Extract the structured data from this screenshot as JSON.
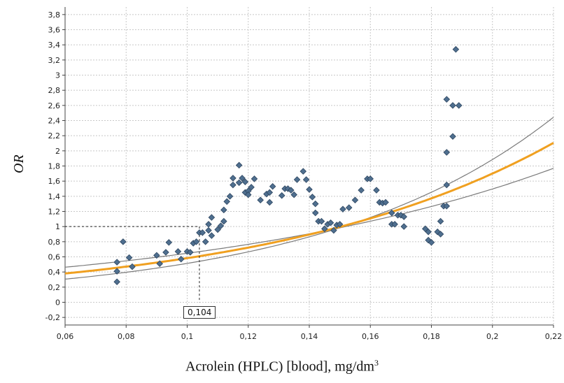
{
  "chart_data": {
    "type": "scatter",
    "xlabel": "Acrolein (HPLC) [blood], mg/dm",
    "xlabel_sup": "3",
    "ylabel": "OR",
    "xlim": [
      0.06,
      0.22
    ],
    "ylim": [
      -0.3,
      3.9
    ],
    "x_ticks": [
      "0,06",
      "0,08",
      "0,1",
      "0,12",
      "0,14",
      "0,16",
      "0,18",
      "0,2",
      "0,22"
    ],
    "y_ticks": [
      "-0,2",
      "0",
      "0,2",
      "0,4",
      "0,6",
      "0,8",
      "1",
      "1,2",
      "1,4",
      "1,6",
      "1,8",
      "2",
      "2,2",
      "2,4",
      "2,6",
      "2,8",
      "3",
      "3,2",
      "3,4",
      "3,6",
      "3,8"
    ],
    "grid": true,
    "colors": {
      "points": "#4f6f8f",
      "fit": "#f0a020",
      "ci": "#7a7a7a"
    },
    "points": [
      [
        0.077,
        0.27
      ],
      [
        0.077,
        0.41
      ],
      [
        0.077,
        0.53
      ],
      [
        0.079,
        0.8
      ],
      [
        0.081,
        0.59
      ],
      [
        0.082,
        0.47
      ],
      [
        0.09,
        0.62
      ],
      [
        0.091,
        0.51
      ],
      [
        0.093,
        0.66
      ],
      [
        0.094,
        0.79
      ],
      [
        0.097,
        0.67
      ],
      [
        0.098,
        0.57
      ],
      [
        0.1,
        0.67
      ],
      [
        0.101,
        0.66
      ],
      [
        0.102,
        0.78
      ],
      [
        0.103,
        0.8
      ],
      [
        0.104,
        0.92
      ],
      [
        0.105,
        0.92
      ],
      [
        0.106,
        0.8
      ],
      [
        0.107,
        0.95
      ],
      [
        0.107,
        1.03
      ],
      [
        0.108,
        1.12
      ],
      [
        0.108,
        0.88
      ],
      [
        0.11,
        0.96
      ],
      [
        0.111,
        1.01
      ],
      [
        0.112,
        1.07
      ],
      [
        0.112,
        1.22
      ],
      [
        0.113,
        1.33
      ],
      [
        0.114,
        1.4
      ],
      [
        0.115,
        1.55
      ],
      [
        0.115,
        1.64
      ],
      [
        0.117,
        1.81
      ],
      [
        0.117,
        1.58
      ],
      [
        0.118,
        1.64
      ],
      [
        0.119,
        1.59
      ],
      [
        0.119,
        1.45
      ],
      [
        0.12,
        1.47
      ],
      [
        0.12,
        1.42
      ],
      [
        0.121,
        1.52
      ],
      [
        0.122,
        1.63
      ],
      [
        0.124,
        1.35
      ],
      [
        0.126,
        1.43
      ],
      [
        0.127,
        1.32
      ],
      [
        0.127,
        1.45
      ],
      [
        0.128,
        1.53
      ],
      [
        0.131,
        1.41
      ],
      [
        0.132,
        1.5
      ],
      [
        0.133,
        1.5
      ],
      [
        0.134,
        1.48
      ],
      [
        0.135,
        1.42
      ],
      [
        0.136,
        1.62
      ],
      [
        0.138,
        1.73
      ],
      [
        0.139,
        1.62
      ],
      [
        0.14,
        1.49
      ],
      [
        0.141,
        1.39
      ],
      [
        0.142,
        1.3
      ],
      [
        0.142,
        1.18
      ],
      [
        0.143,
        1.07
      ],
      [
        0.144,
        1.07
      ],
      [
        0.145,
        0.97
      ],
      [
        0.146,
        1.03
      ],
      [
        0.147,
        1.05
      ],
      [
        0.148,
        0.95
      ],
      [
        0.149,
        1.02
      ],
      [
        0.15,
        1.03
      ],
      [
        0.151,
        1.23
      ],
      [
        0.153,
        1.25
      ],
      [
        0.155,
        1.35
      ],
      [
        0.157,
        1.48
      ],
      [
        0.159,
        1.63
      ],
      [
        0.16,
        1.63
      ],
      [
        0.162,
        1.48
      ],
      [
        0.163,
        1.32
      ],
      [
        0.164,
        1.31
      ],
      [
        0.165,
        1.32
      ],
      [
        0.167,
        1.18
      ],
      [
        0.167,
        1.03
      ],
      [
        0.168,
        1.03
      ],
      [
        0.169,
        1.15
      ],
      [
        0.17,
        1.15
      ],
      [
        0.171,
        1.13
      ],
      [
        0.171,
        1.0
      ],
      [
        0.178,
        0.97
      ],
      [
        0.179,
        0.93
      ],
      [
        0.179,
        0.82
      ],
      [
        0.18,
        0.79
      ],
      [
        0.182,
        0.93
      ],
      [
        0.183,
        0.9
      ],
      [
        0.183,
        1.07
      ],
      [
        0.184,
        1.27
      ],
      [
        0.185,
        1.27
      ],
      [
        0.185,
        1.55
      ],
      [
        0.185,
        1.98
      ],
      [
        0.185,
        2.68
      ],
      [
        0.187,
        2.19
      ],
      [
        0.187,
        2.6
      ],
      [
        0.188,
        3.34
      ],
      [
        0.189,
        2.6
      ]
    ],
    "fit_curve": {
      "a": 0.2,
      "b": 10.7,
      "label": "fit"
    },
    "ci_upper": {
      "a": 0.14,
      "b": 13.0
    },
    "ci_lower": {
      "a": 0.28,
      "b": 8.38
    },
    "annotation": {
      "x": 0.104,
      "y": 1.0,
      "label": "0,104"
    }
  }
}
